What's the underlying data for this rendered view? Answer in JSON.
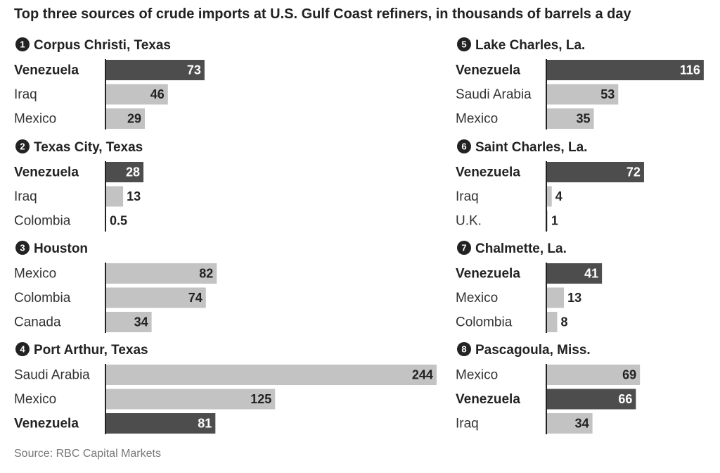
{
  "title": "Top three sources of crude imports at U.S. Gulf Coast refiners, in thousands of barrels a day",
  "source": "Source: RBC Capital Markets",
  "colors": {
    "highlight": "#4d4d4d",
    "normal": "#c3c3c3",
    "axis": "#222222",
    "text_dark": "#222222",
    "text_light": "#ffffff"
  },
  "chart_data": [
    {
      "type": "bar",
      "orientation": "horizontal",
      "panel": "1",
      "title": "Corpus Christi, Texas",
      "categories": [
        "Venezuela",
        "Iraq",
        "Mexico"
      ],
      "values": [
        73,
        46,
        29
      ],
      "value_labels": [
        "73",
        "46",
        "29"
      ],
      "highlighted": [
        true,
        false,
        false
      ]
    },
    {
      "type": "bar",
      "orientation": "horizontal",
      "panel": "2",
      "title": "Texas City, Texas",
      "categories": [
        "Venezuela",
        "Iraq",
        "Colombia"
      ],
      "values": [
        28,
        13,
        0.5
      ],
      "value_labels": [
        "28",
        "13",
        "0.5"
      ],
      "highlighted": [
        true,
        false,
        false
      ]
    },
    {
      "type": "bar",
      "orientation": "horizontal",
      "panel": "3",
      "title": "Houston",
      "categories": [
        "Mexico",
        "Colombia",
        "Canada"
      ],
      "values": [
        82,
        74,
        34
      ],
      "value_labels": [
        "82",
        "74",
        "34"
      ],
      "highlighted": [
        false,
        false,
        false
      ]
    },
    {
      "type": "bar",
      "orientation": "horizontal",
      "panel": "4",
      "title": "Port Arthur, Texas",
      "categories": [
        "Saudi Arabia",
        "Mexico",
        "Venezuela"
      ],
      "values": [
        244,
        125,
        81
      ],
      "value_labels": [
        "244",
        "125",
        "81"
      ],
      "highlighted": [
        false,
        false,
        true
      ]
    },
    {
      "type": "bar",
      "orientation": "horizontal",
      "panel": "5",
      "title": "Lake Charles, La.",
      "categories": [
        "Venezuela",
        "Saudi Arabia",
        "Mexico"
      ],
      "values": [
        116,
        53,
        35
      ],
      "value_labels": [
        "116",
        "53",
        "35"
      ],
      "highlighted": [
        true,
        false,
        false
      ]
    },
    {
      "type": "bar",
      "orientation": "horizontal",
      "panel": "6",
      "title": "Saint Charles, La.",
      "categories": [
        "Venezuela",
        "Iraq",
        "U.K."
      ],
      "values": [
        72,
        4,
        1
      ],
      "value_labels": [
        "72",
        "4",
        "1"
      ],
      "highlighted": [
        true,
        false,
        false
      ]
    },
    {
      "type": "bar",
      "orientation": "horizontal",
      "panel": "7",
      "title": "Chalmette, La.",
      "categories": [
        "Venezuela",
        "Mexico",
        "Colombia"
      ],
      "values": [
        41,
        13,
        8
      ],
      "value_labels": [
        "41",
        "13",
        "8"
      ],
      "highlighted": [
        true,
        false,
        false
      ]
    },
    {
      "type": "bar",
      "orientation": "horizontal",
      "panel": "8",
      "title": "Pascagoula, Miss.",
      "categories": [
        "Mexico",
        "Venezuela",
        "Iraq"
      ],
      "values": [
        69,
        66,
        34
      ],
      "value_labels": [
        "69",
        "66",
        "34"
      ],
      "highlighted": [
        false,
        true,
        false
      ]
    }
  ]
}
